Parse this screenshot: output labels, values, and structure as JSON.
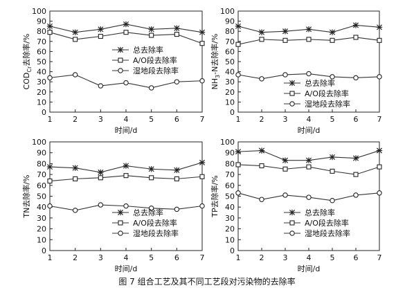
{
  "figure_caption": "图 7  组合工艺及其不同工艺段对污染物的去除率",
  "chart_data": [
    {
      "type": "line",
      "title": "",
      "xlabel": "时间/d",
      "ylabel_main": "COD",
      "ylabel_sub": "Cr",
      "ylabel_rest": "去除率/%",
      "x": [
        1,
        2,
        3,
        4,
        5,
        6,
        7
      ],
      "xlim": [
        1,
        7
      ],
      "ylim": [
        0,
        100
      ],
      "yticks": [
        0,
        10,
        20,
        30,
        40,
        50,
        60,
        70,
        80,
        90,
        100
      ],
      "xticks": [
        1,
        2,
        3,
        4,
        5,
        6,
        7
      ],
      "legend_position": "upper-right",
      "series": [
        {
          "name": "总去除率",
          "marker": "asterisk",
          "values": [
            85,
            79,
            82,
            87,
            82,
            83,
            79
          ]
        },
        {
          "name": "A/O段去除率",
          "marker": "square",
          "values": [
            79,
            72,
            75,
            79,
            76,
            77,
            68
          ]
        },
        {
          "name": "湿地段去除率",
          "marker": "circle",
          "values": [
            34,
            37,
            26,
            29,
            24,
            30,
            31
          ]
        }
      ]
    },
    {
      "type": "line",
      "title": "",
      "xlabel": "时间/d",
      "ylabel_main": "NH",
      "ylabel_sub": "3",
      "ylabel_rest": "-N去除率/%",
      "x": [
        1,
        2,
        3,
        4,
        5,
        6,
        7
      ],
      "xlim": [
        1,
        7
      ],
      "ylim": [
        0,
        100
      ],
      "yticks": [
        0,
        10,
        20,
        30,
        40,
        50,
        60,
        70,
        80,
        90,
        100
      ],
      "xticks": [
        1,
        2,
        3,
        4,
        5,
        6,
        7
      ],
      "legend_position": "lower-right",
      "series": [
        {
          "name": "总去除率",
          "marker": "asterisk",
          "values": [
            85,
            79,
            80,
            82,
            79,
            86,
            84
          ]
        },
        {
          "name": "A/O段去除率",
          "marker": "square",
          "values": [
            67,
            72,
            71,
            72,
            71,
            74,
            71
          ]
        },
        {
          "name": "湿地段去除率",
          "marker": "circle",
          "values": [
            37,
            33,
            37,
            38,
            35,
            34,
            35
          ]
        }
      ]
    },
    {
      "type": "line",
      "title": "",
      "xlabel": "时间/d",
      "ylabel_main": "TN去除率/%",
      "ylabel_sub": "",
      "ylabel_rest": "",
      "x": [
        1,
        2,
        3,
        4,
        5,
        6,
        7
      ],
      "xlim": [
        1,
        7
      ],
      "ylim": [
        0,
        100
      ],
      "yticks": [
        0,
        10,
        20,
        30,
        40,
        50,
        60,
        70,
        80,
        90,
        100
      ],
      "xticks": [
        1,
        2,
        3,
        4,
        5,
        6,
        7
      ],
      "legend_position": "lower-right",
      "series": [
        {
          "name": "总去除率",
          "marker": "asterisk",
          "values": [
            77,
            76,
            72,
            78,
            75,
            74,
            81
          ]
        },
        {
          "name": "A/O段去除率",
          "marker": "square",
          "values": [
            64,
            66,
            67,
            69,
            67,
            66,
            68
          ]
        },
        {
          "name": "湿地段去除率",
          "marker": "circle",
          "values": [
            41,
            37,
            42,
            41,
            39,
            38,
            41
          ]
        }
      ]
    },
    {
      "type": "line",
      "title": "",
      "xlabel": "时间/d",
      "ylabel_main": "TP去除率/%",
      "ylabel_sub": "",
      "ylabel_rest": "",
      "x": [
        1,
        2,
        3,
        4,
        5,
        6,
        7
      ],
      "xlim": [
        1,
        7
      ],
      "ylim": [
        0,
        100
      ],
      "yticks": [
        0,
        10,
        20,
        30,
        40,
        50,
        60,
        70,
        80,
        90,
        100
      ],
      "xticks": [
        1,
        2,
        3,
        4,
        5,
        6,
        7
      ],
      "legend_position": "lower-right",
      "series": [
        {
          "name": "总去除率",
          "marker": "asterisk",
          "values": [
            91,
            92,
            83,
            83,
            86,
            85,
            92
          ]
        },
        {
          "name": "A/O段去除率",
          "marker": "square",
          "values": [
            79,
            78,
            75,
            77,
            73,
            70,
            77
          ]
        },
        {
          "name": "湿地段去除率",
          "marker": "circle",
          "values": [
            53,
            47,
            51,
            49,
            46,
            51,
            53
          ]
        }
      ]
    }
  ]
}
